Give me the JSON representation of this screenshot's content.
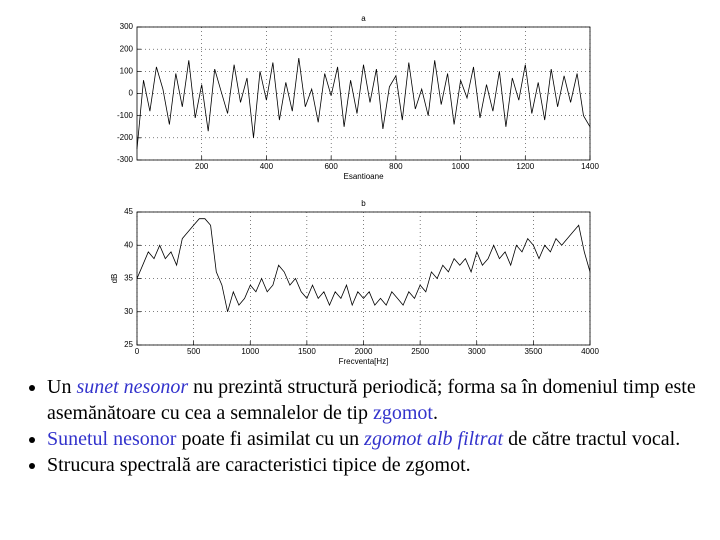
{
  "chart_data": [
    {
      "type": "line",
      "title": "a",
      "xlabel": "Esantioane",
      "color": "#000000",
      "grid": true,
      "xlim": [
        0,
        1400
      ],
      "xticks": [
        200,
        400,
        600,
        800,
        1000,
        1200,
        1400
      ],
      "ylim": [
        -300,
        300
      ],
      "yticks": [
        -300,
        -200,
        -100,
        0,
        100,
        200,
        300
      ],
      "x": [
        0,
        20,
        40,
        60,
        80,
        100,
        120,
        140,
        160,
        180,
        200,
        220,
        240,
        260,
        280,
        300,
        320,
        340,
        360,
        380,
        400,
        420,
        440,
        460,
        480,
        500,
        520,
        540,
        560,
        580,
        600,
        620,
        640,
        660,
        680,
        700,
        720,
        740,
        760,
        780,
        800,
        820,
        840,
        860,
        880,
        900,
        920,
        940,
        960,
        980,
        1000,
        1020,
        1040,
        1060,
        1080,
        1100,
        1120,
        1140,
        1160,
        1180,
        1200,
        1220,
        1240,
        1260,
        1280,
        1300,
        1320,
        1340,
        1360,
        1380,
        1400
      ],
      "values": [
        -250,
        60,
        -80,
        120,
        20,
        -140,
        90,
        -60,
        150,
        -110,
        40,
        -170,
        110,
        10,
        -90,
        130,
        -40,
        70,
        -200,
        100,
        -30,
        140,
        -120,
        50,
        -80,
        160,
        -60,
        20,
        -130,
        90,
        -10,
        120,
        -150,
        60,
        -90,
        130,
        -40,
        110,
        -160,
        30,
        80,
        -120,
        140,
        -70,
        20,
        -100,
        150,
        -50,
        90,
        -140,
        60,
        -20,
        120,
        -110,
        40,
        -80,
        100,
        -150,
        70,
        -30,
        130,
        -90,
        50,
        -120,
        110,
        -60,
        80,
        -40,
        90,
        -100,
        -150
      ]
    },
    {
      "type": "line",
      "title": "b",
      "xlabel": "Frecventa[Hz]",
      "ylabel": "dB",
      "color": "#000000",
      "grid": true,
      "xlim": [
        0,
        4000
      ],
      "xticks": [
        0,
        500,
        1000,
        1500,
        2000,
        2500,
        3000,
        3500,
        4000
      ],
      "ylim": [
        25,
        45
      ],
      "yticks": [
        25,
        30,
        35,
        40,
        45
      ],
      "x": [
        0,
        50,
        100,
        150,
        200,
        250,
        300,
        350,
        400,
        450,
        500,
        550,
        600,
        650,
        700,
        750,
        800,
        850,
        900,
        950,
        1000,
        1050,
        1100,
        1150,
        1200,
        1250,
        1300,
        1350,
        1400,
        1450,
        1500,
        1550,
        1600,
        1650,
        1700,
        1750,
        1800,
        1850,
        1900,
        1950,
        2000,
        2050,
        2100,
        2150,
        2200,
        2250,
        2300,
        2350,
        2400,
        2450,
        2500,
        2550,
        2600,
        2650,
        2700,
        2750,
        2800,
        2850,
        2900,
        2950,
        3000,
        3050,
        3100,
        3150,
        3200,
        3250,
        3300,
        3350,
        3400,
        3450,
        3500,
        3550,
        3600,
        3650,
        3700,
        3750,
        3800,
        3850,
        3900,
        3950,
        4000
      ],
      "values": [
        35,
        37,
        39,
        38,
        40,
        38,
        39,
        37,
        41,
        42,
        43,
        44,
        44,
        43,
        36,
        34,
        30,
        33,
        31,
        32,
        34,
        33,
        35,
        33,
        34,
        37,
        36,
        34,
        35,
        33,
        32,
        34,
        32,
        33,
        31,
        33,
        32,
        34,
        31,
        33,
        32,
        33,
        31,
        32,
        31,
        33,
        32,
        31,
        33,
        32,
        34,
        33,
        36,
        35,
        37,
        36,
        38,
        37,
        38,
        36,
        39,
        37,
        38,
        40,
        38,
        39,
        37,
        40,
        39,
        41,
        40,
        38,
        40,
        39,
        41,
        40,
        41,
        42,
        43,
        39,
        36
      ]
    }
  ],
  "bullets": [
    [
      {
        "text": "Un "
      },
      {
        "text": "sunet nesonor",
        "italic": true,
        "color": "#3333cc"
      },
      {
        "text": " nu prezintă structură periodică; forma sa în domeniul timp este asemănătoare cu cea a semnalelor de tip "
      },
      {
        "text": "zgomot",
        "color": "#3333cc"
      },
      {
        "text": "."
      }
    ],
    [
      {
        "text": "Sunetul nesonor",
        "color": "#3333cc"
      },
      {
        "text": " poate fi asimilat cu un "
      },
      {
        "text": "zgomot alb filtrat",
        "italic": true,
        "color": "#3333cc"
      },
      {
        "text": " de către tractul vocal."
      }
    ],
    [
      {
        "text": "Strucura spectrală are caracteristici tipice de zgomot."
      }
    ]
  ]
}
